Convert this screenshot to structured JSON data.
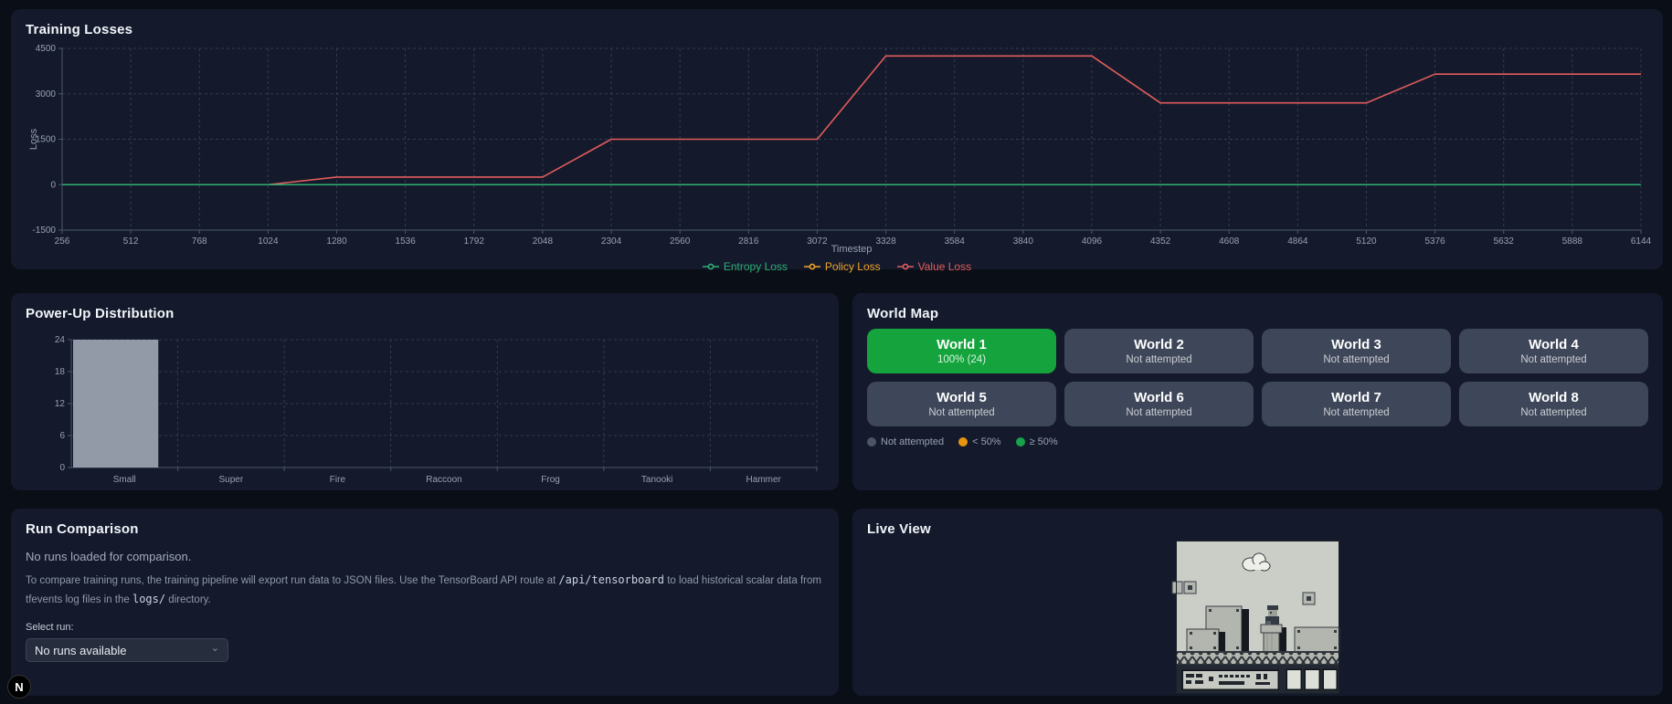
{
  "colors": {
    "page_background": "#0a0e17",
    "panel_background": "#141a2b",
    "grid_line": "#323b50",
    "axis_line": "#4d566b",
    "tick_text": "#97a0b4",
    "entropy_green": "#2fae74",
    "policy_orange": "#eda32a",
    "value_red": "#e25c5c",
    "bar_gray": "#9aa1ae",
    "world_complete_green": "#14a33c",
    "world_gray": "#3e4759",
    "legend_not_attempted_gray": "#4b5563",
    "legend_amber": "#e8940f",
    "legend_green": "#16a34a"
  },
  "training_losses": {
    "title": "Training Losses"
  },
  "powerup": {
    "title": "Power-Up Distribution"
  },
  "chart_data": [
    {
      "id": "training-losses",
      "type": "line",
      "title": "Training Losses",
      "xlabel": "Timestep",
      "ylabel": "Loss",
      "xlim": [
        256,
        6144
      ],
      "ylim": [
        -1500,
        4500
      ],
      "x_ticks": [
        256,
        512,
        768,
        1024,
        1280,
        1536,
        1792,
        2048,
        2304,
        2560,
        2816,
        3072,
        3328,
        3584,
        3840,
        4096,
        4352,
        4608,
        4864,
        5120,
        5376,
        5632,
        5888,
        6144
      ],
      "y_ticks": [
        -1500,
        0,
        1500,
        3000,
        4500
      ],
      "grid": true,
      "legend_position": "bottom",
      "series": [
        {
          "name": "Entropy Loss",
          "color": "#2fae74",
          "x": [
            256,
            512,
            768,
            1024,
            1280,
            1536,
            1792,
            2048,
            2304,
            2560,
            2816,
            3072,
            3328,
            3584,
            3840,
            4096,
            4352,
            4608,
            4864,
            5120,
            5376,
            5632,
            5888,
            6144
          ],
          "y": [
            0,
            0,
            0,
            0,
            0,
            0,
            0,
            0,
            0,
            0,
            0,
            0,
            0,
            0,
            0,
            0,
            0,
            0,
            0,
            0,
            0,
            0,
            0,
            0
          ]
        },
        {
          "name": "Policy Loss",
          "color": "#eda32a",
          "x": [
            256,
            512,
            768,
            1024,
            1280,
            1536,
            1792,
            2048,
            2304,
            2560,
            2816,
            3072,
            3328,
            3584,
            3840,
            4096,
            4352,
            4608,
            4864,
            5120,
            5376,
            5632,
            5888,
            6144
          ],
          "y": [
            0,
            0,
            0,
            0,
            0,
            0,
            0,
            0,
            0,
            0,
            0,
            0,
            0,
            0,
            0,
            0,
            0,
            0,
            0,
            0,
            0,
            0,
            0,
            0
          ]
        },
        {
          "name": "Value Loss",
          "color": "#e25c5c",
          "x": [
            256,
            512,
            768,
            1024,
            1280,
            1536,
            1792,
            2048,
            2304,
            2560,
            2816,
            3072,
            3328,
            3584,
            3840,
            4096,
            4352,
            4608,
            4864,
            5120,
            5376,
            5632,
            5888,
            6144
          ],
          "y": [
            0,
            0,
            0,
            0,
            250,
            250,
            250,
            250,
            1500,
            1500,
            1500,
            1500,
            4250,
            4250,
            4250,
            4250,
            2700,
            2700,
            2700,
            2700,
            3650,
            3650,
            3650,
            3650
          ]
        }
      ]
    },
    {
      "id": "powerup-distribution",
      "type": "bar",
      "title": "Power-Up Distribution",
      "categories": [
        "Small",
        "Super",
        "Fire",
        "Raccoon",
        "Frog",
        "Tanooki",
        "Hammer"
      ],
      "values": [
        24,
        0,
        0,
        0,
        0,
        0,
        0
      ],
      "ylim": [
        0,
        24
      ],
      "y_ticks": [
        0,
        6,
        12,
        18,
        24
      ],
      "grid": true,
      "bar_color": "#9aa1ae"
    }
  ],
  "world_map": {
    "title": "World Map",
    "worlds": [
      {
        "name": "World 1",
        "status": "100% (24)",
        "state": "complete"
      },
      {
        "name": "World 2",
        "status": "Not attempted",
        "state": "not-attempted"
      },
      {
        "name": "World 3",
        "status": "Not attempted",
        "state": "not-attempted"
      },
      {
        "name": "World 4",
        "status": "Not attempted",
        "state": "not-attempted"
      },
      {
        "name": "World 5",
        "status": "Not attempted",
        "state": "not-attempted"
      },
      {
        "name": "World 6",
        "status": "Not attempted",
        "state": "not-attempted"
      },
      {
        "name": "World 7",
        "status": "Not attempted",
        "state": "not-attempted"
      },
      {
        "name": "World 8",
        "status": "Not attempted",
        "state": "not-attempted"
      }
    ],
    "legend": [
      {
        "label": "Not attempted",
        "color": "#4b5563"
      },
      {
        "label": "< 50%",
        "color": "#e8940f"
      },
      {
        "label": "≥ 50%",
        "color": "#16a34a"
      }
    ]
  },
  "run_comparison": {
    "title": "Run Comparison",
    "empty_message": "No runs loaded for comparison.",
    "description": [
      {
        "text": "To compare training runs, the training pipeline will export run data to JSON files. Use the TensorBoard API route at ",
        "mono": false
      },
      {
        "text": "/api/tensorboard",
        "mono": true
      },
      {
        "text": " to load historical scalar data from tfevents log files in the ",
        "mono": false
      },
      {
        "text": "logs/",
        "mono": true
      },
      {
        "text": " directory.",
        "mono": false
      }
    ],
    "select_label": "Select run:",
    "select_value": "No runs available"
  },
  "live_view": {
    "title": "Live View"
  },
  "dev_badge": {
    "label": "N"
  }
}
